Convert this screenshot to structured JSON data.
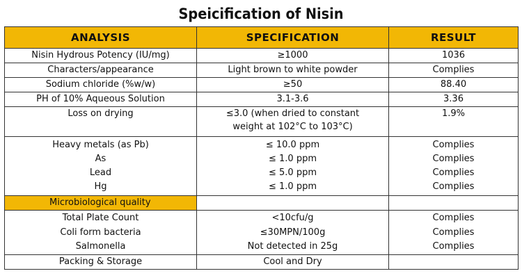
{
  "title": "Speicification of Nisin",
  "headers": [
    "ANALYSIS",
    "SPECIFICATION",
    "RESULT"
  ],
  "rows": [
    {
      "analysis": "Nisin Hydrous Potency (IU/mg)",
      "spec": "≥1000",
      "result": "1036"
    },
    {
      "analysis": "Characters/appearance",
      "spec": "Light brown to white powder",
      "result": "Complies"
    },
    {
      "analysis": "Sodium chloride (%w/w)",
      "spec": "≥50",
      "result": "88.40"
    },
    {
      "analysis": "PH of 10% Aqueous Solution",
      "spec": "3.1-3.6",
      "result": "3.36"
    },
    {
      "analysis": "Loss on drying",
      "spec_line1": "≤3.0 (when dried to constant",
      "spec_line2": "weight at 102°C to 103°C)",
      "result": "1.9%"
    }
  ],
  "heavy_metals": {
    "label": "Heavy metals (as Pb)",
    "spec": "≤ 10.0 ppm",
    "result": "Complies",
    "items": [
      {
        "label": "As",
        "spec": "≤ 1.0 ppm",
        "result": "Complies"
      },
      {
        "label": "Lead",
        "spec": "≤ 5.0 ppm",
        "result": "Complies"
      },
      {
        "label": "Hg",
        "spec": "≤ 1.0 ppm",
        "result": "Complies"
      }
    ]
  },
  "micro": {
    "label": "Microbiological quality",
    "items": [
      {
        "label": "Total Plate Count",
        "spec": "<10cfu/g",
        "result": "Complies"
      },
      {
        "label": "Coli form bacteria",
        "spec": "≤30MPN/100g",
        "result": "Complies"
      },
      {
        "label": "Salmonella",
        "spec": "Not detected in 25g",
        "result": "Complies"
      }
    ]
  },
  "packing": {
    "label": "Packing & Storage",
    "spec": "Cool and Dry",
    "result": ""
  },
  "colors": {
    "header_bg": "#f2b705",
    "border": "#333333"
  }
}
